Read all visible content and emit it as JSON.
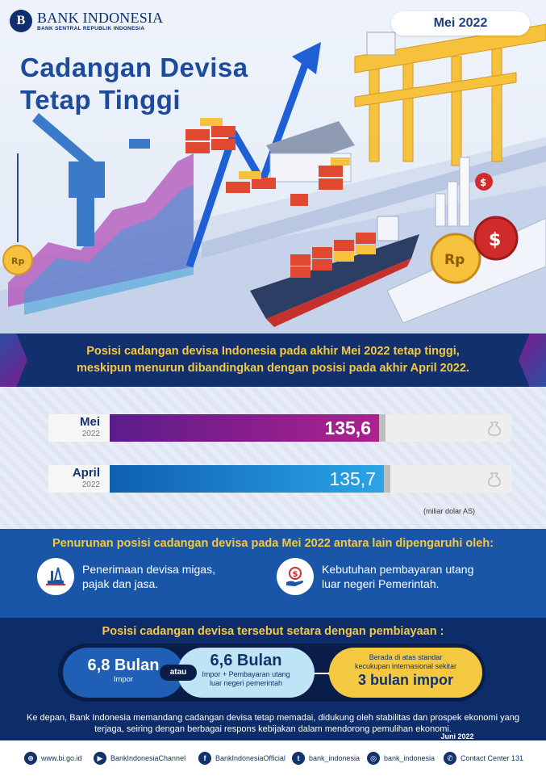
{
  "brand": {
    "name": "BANK INDONESIA",
    "tagline": "BANK SENTRAL REPUBLIK INDONESIA",
    "mark": "B"
  },
  "date_badge": "Mei 2022",
  "title": {
    "line1": "Cadangan Devisa",
    "line2": "Tetap Tinggi"
  },
  "intro": {
    "line1": "Posisi cadangan devisa Indonesia pada akhir Mei 2022 tetap tinggi,",
    "line2": "meskipun menurun dibandingkan dengan posisi pada akhir April 2022."
  },
  "chart_data": {
    "type": "bar",
    "categories": [
      "Mei 2022",
      "April 2022"
    ],
    "values": [
      135.6,
      135.7
    ],
    "value_labels": [
      "135,6",
      "135,7"
    ],
    "months": [
      "Mei",
      "April"
    ],
    "years": [
      "2022",
      "2022"
    ],
    "unit": "(miliar dolar AS)",
    "colors": [
      "#8b1f94",
      "#1c84d6"
    ]
  },
  "reasons": {
    "heading": "Penurunan posisi cadangan devisa pada Mei 2022 antara lain dipengaruhi oleh:",
    "items": [
      {
        "line1": "Penerimaan devisa migas,",
        "line2": "pajak dan jasa.",
        "icon": "oil-rig-icon"
      },
      {
        "line1": "Kebutuhan pembayaran utang",
        "line2": "luar negeri Pemerintah.",
        "icon": "money-hand-icon"
      }
    ]
  },
  "equivalence": {
    "heading": "Posisi cadangan devisa tersebut setara dengan pembiayaan :",
    "import_value": "6,8 Bulan",
    "import_label": "Impor",
    "or_label": "atau",
    "combo_value": "6,6 Bulan",
    "combo_label1": "Impor + Pembayaran utang",
    "combo_label2": "luar negeri pemerintah",
    "standard_label1": "Berada di atas standar",
    "standard_label2": "kecukupan internasional sekitar",
    "standard_value": "3 bulan impor"
  },
  "note": {
    "text": "Ke depan, Bank Indonesia memandang cadangan devisa tetap memadai, didukung oleh stabilitas dan prospek ekonomi yang terjaga, seiring dengan berbagai respons kebijakan dalam mendorong pemulihan ekonomi.",
    "date": "Juni 2022"
  },
  "footer": [
    {
      "label": "www.bi.go.id",
      "glyph": "⊕",
      "icon": "globe-icon"
    },
    {
      "label": "BankIndonesiaChannel",
      "glyph": "▶",
      "icon": "youtube-icon"
    },
    {
      "label": "BankIndonesiaOfficial",
      "glyph": "f",
      "icon": "facebook-icon"
    },
    {
      "label": "bank_indonesia",
      "glyph": "t",
      "icon": "twitter-icon"
    },
    {
      "label": "bank_indonesia",
      "glyph": "◎",
      "icon": "instagram-icon"
    },
    {
      "label": "Contact Center 131",
      "glyph": "✆",
      "icon": "phone-icon"
    }
  ]
}
